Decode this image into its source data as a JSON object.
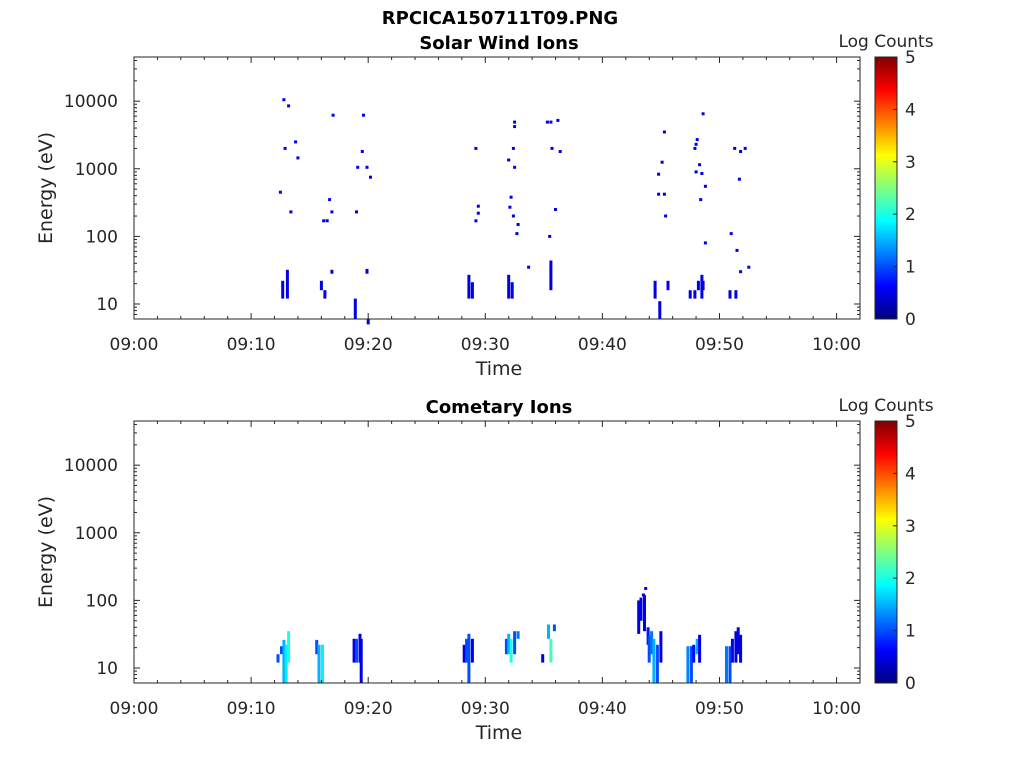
{
  "figure_title": "RPCICA150711T09.PNG",
  "colormap": [
    "#00007f",
    "#0000ff",
    "#007fff",
    "#00ffff",
    "#7fff7f",
    "#ffff00",
    "#ff7f00",
    "#ff0000",
    "#7f0000"
  ],
  "chart_data": [
    {
      "type": "heatmap",
      "title": "Solar Wind Ions",
      "xlabel": "Time",
      "ylabel": "Energy (eV)",
      "xticks": [
        "09:00",
        "09:10",
        "09:20",
        "09:30",
        "09:40",
        "09:50",
        "10:00"
      ],
      "xlim_minutes": [
        0,
        62
      ],
      "yscale": "log",
      "ylim": [
        6,
        45000
      ],
      "yticks": [
        10,
        100,
        1000,
        10000
      ],
      "ytick_labels": [
        "10",
        "100",
        "1000",
        "10000"
      ],
      "colorbar": {
        "label": "Log Counts",
        "range": [
          0,
          5
        ],
        "ticks": [
          "0",
          "1",
          "2",
          "3",
          "4",
          "5"
        ]
      },
      "cells": [
        [
          12.8,
          10500,
          0.5
        ],
        [
          13.2,
          8500,
          0.5
        ],
        [
          13.8,
          2500,
          0.5
        ],
        [
          12.9,
          2000,
          0.5
        ],
        [
          14.0,
          1450,
          0.5
        ],
        [
          12.5,
          450,
          0.5
        ],
        [
          13.4,
          230,
          0.5
        ],
        [
          17.0,
          6200,
          0.5
        ],
        [
          19.6,
          6200,
          0.5
        ],
        [
          19.5,
          1800,
          0.5
        ],
        [
          19.1,
          1050,
          0.5
        ],
        [
          19.9,
          1050,
          0.5
        ],
        [
          20.2,
          750,
          0.5
        ],
        [
          16.7,
          350,
          0.5
        ],
        [
          16.9,
          230,
          0.5
        ],
        [
          16.2,
          170,
          0.5
        ],
        [
          16.5,
          170,
          0.5
        ],
        [
          19.0,
          230,
          0.5
        ],
        [
          29.2,
          2000,
          0.5
        ],
        [
          29.4,
          280,
          0.5
        ],
        [
          29.4,
          220,
          0.5
        ],
        [
          29.2,
          170,
          0.5
        ],
        [
          32.5,
          4900,
          0.5
        ],
        [
          32.5,
          4200,
          0.5
        ],
        [
          32.4,
          2000,
          0.5
        ],
        [
          32.0,
          1350,
          0.5
        ],
        [
          32.5,
          1050,
          0.5
        ],
        [
          32.2,
          380,
          0.5
        ],
        [
          32.1,
          270,
          0.5
        ],
        [
          32.4,
          200,
          0.5
        ],
        [
          32.8,
          150,
          0.5
        ],
        [
          32.7,
          110,
          0.5
        ],
        [
          33.7,
          35,
          0.5
        ],
        [
          35.3,
          4900,
          0.5
        ],
        [
          35.6,
          4900,
          0.5
        ],
        [
          36.2,
          5200,
          0.5
        ],
        [
          35.7,
          2000,
          0.5
        ],
        [
          36.4,
          1800,
          0.5
        ],
        [
          36.0,
          250,
          0.5
        ],
        [
          35.5,
          100,
          0.5
        ],
        [
          45.3,
          3500,
          0.5
        ],
        [
          45.1,
          1250,
          0.5
        ],
        [
          44.8,
          830,
          0.5
        ],
        [
          44.8,
          420,
          0.5
        ],
        [
          45.3,
          420,
          0.5
        ],
        [
          45.4,
          200,
          0.5
        ],
        [
          48.6,
          6500,
          0.5
        ],
        [
          48.1,
          2700,
          0.5
        ],
        [
          48.0,
          2300,
          0.5
        ],
        [
          47.9,
          2000,
          0.5
        ],
        [
          48.3,
          1150,
          0.5
        ],
        [
          48.0,
          900,
          0.5
        ],
        [
          48.5,
          850,
          0.5
        ],
        [
          48.8,
          550,
          0.5
        ],
        [
          48.4,
          350,
          0.5
        ],
        [
          48.8,
          80,
          0.5
        ],
        [
          51.3,
          2000,
          0.5
        ],
        [
          51.8,
          1800,
          0.5
        ],
        [
          52.2,
          2000,
          0.5
        ],
        [
          51.7,
          700,
          0.5
        ],
        [
          51.0,
          110,
          0.5
        ],
        [
          51.5,
          62,
          0.5
        ],
        [
          51.8,
          30,
          0.5
        ],
        [
          52.5,
          35,
          0.5
        ]
      ],
      "bars": [
        [
          12.7,
          12,
          22,
          0.5
        ],
        [
          13.1,
          12,
          32,
          0.5
        ],
        [
          16.0,
          16,
          22,
          0.5
        ],
        [
          16.3,
          12,
          16,
          0.5
        ],
        [
          16.9,
          28,
          32,
          0.5
        ],
        [
          18.9,
          6,
          12,
          0.5
        ],
        [
          19.9,
          28,
          33,
          0.5
        ],
        [
          20.0,
          5,
          6,
          0.5
        ],
        [
          28.6,
          12,
          27,
          0.5
        ],
        [
          28.9,
          12,
          21,
          0.5
        ],
        [
          32.0,
          12,
          27,
          0.5
        ],
        [
          32.3,
          12,
          21,
          0.5
        ],
        [
          35.6,
          16,
          44,
          0.5
        ],
        [
          44.5,
          12,
          22,
          0.5
        ],
        [
          44.9,
          6,
          11,
          0.5
        ],
        [
          45.6,
          16,
          22,
          0.5
        ],
        [
          47.5,
          12,
          16,
          0.5
        ],
        [
          47.9,
          12,
          16,
          0.5
        ],
        [
          48.2,
          16,
          22,
          0.5
        ],
        [
          48.5,
          12,
          27,
          0.5
        ],
        [
          48.6,
          16,
          22,
          0.5
        ],
        [
          50.9,
          12,
          16,
          0.5
        ],
        [
          51.4,
          12,
          16,
          0.5
        ]
      ]
    },
    {
      "type": "heatmap",
      "title": "Cometary Ions",
      "xlabel": "Time",
      "ylabel": "Energy (eV)",
      "xticks": [
        "09:00",
        "09:10",
        "09:20",
        "09:30",
        "09:40",
        "09:50",
        "10:00"
      ],
      "xlim_minutes": [
        0,
        62
      ],
      "yscale": "log",
      "ylim": [
        6,
        45000
      ],
      "yticks": [
        10,
        100,
        1000,
        10000
      ],
      "ytick_labels": [
        "10",
        "100",
        "1000",
        "10000"
      ],
      "colorbar": {
        "label": "Log Counts",
        "range": [
          0,
          5
        ],
        "ticks": [
          "0",
          "1",
          "2",
          "3",
          "4",
          "5"
        ]
      },
      "cells": [
        [
          43.7,
          150,
          0.5
        ],
        [
          43.5,
          120,
          0.5
        ]
      ],
      "bars": [
        [
          12.3,
          12,
          16,
          1.0
        ],
        [
          12.6,
          16,
          21,
          1.0
        ],
        [
          12.8,
          6,
          26,
          1.5
        ],
        [
          13.0,
          6,
          22,
          1.8
        ],
        [
          13.2,
          12,
          35,
          2.0
        ],
        [
          15.6,
          16,
          26,
          1.0
        ],
        [
          15.8,
          6,
          22,
          1.5
        ],
        [
          16.1,
          6,
          22,
          1.8
        ],
        [
          18.8,
          12,
          27,
          0.5
        ],
        [
          19.0,
          12,
          27,
          1.0
        ],
        [
          19.3,
          12,
          32,
          0.5
        ],
        [
          19.4,
          6,
          27,
          0.5
        ],
        [
          28.2,
          12,
          22,
          0.5
        ],
        [
          28.4,
          12,
          27,
          1.0
        ],
        [
          28.6,
          6,
          32,
          1.0
        ],
        [
          28.9,
          12,
          27,
          0.5
        ],
        [
          31.8,
          16,
          27,
          1.0
        ],
        [
          32.0,
          16,
          32,
          1.5
        ],
        [
          32.2,
          12,
          27,
          2.0
        ],
        [
          32.5,
          16,
          35,
          1.0
        ],
        [
          32.8,
          27,
          35,
          1.2
        ],
        [
          34.9,
          12,
          16,
          0.5
        ],
        [
          35.4,
          27,
          44,
          1.5
        ],
        [
          35.6,
          12,
          27,
          2.2
        ],
        [
          35.9,
          35,
          44,
          1.0
        ],
        [
          43.1,
          32,
          100,
          0.5
        ],
        [
          43.3,
          50,
          110,
          0.5
        ],
        [
          43.6,
          35,
          120,
          0.5
        ],
        [
          43.9,
          22,
          40,
          0.7
        ],
        [
          44.0,
          12,
          30,
          1.0
        ],
        [
          44.2,
          16,
          35,
          1.2
        ],
        [
          44.4,
          6,
          27,
          1.5
        ],
        [
          44.7,
          6,
          22,
          1.0
        ],
        [
          45.0,
          12,
          35,
          0.5
        ],
        [
          47.3,
          6,
          21,
          1.3
        ],
        [
          47.6,
          6,
          21,
          1.0
        ],
        [
          47.8,
          12,
          22,
          0.7
        ],
        [
          48.1,
          16,
          27,
          1.5
        ],
        [
          48.3,
          12,
          31,
          0.5
        ],
        [
          50.6,
          6,
          21,
          1.2
        ],
        [
          50.9,
          6,
          21,
          1.0
        ],
        [
          51.1,
          12,
          27,
          0.5
        ],
        [
          51.4,
          12,
          35,
          0.5
        ],
        [
          51.6,
          16,
          40,
          0.5
        ],
        [
          51.8,
          12,
          31,
          0.5
        ]
      ]
    }
  ]
}
